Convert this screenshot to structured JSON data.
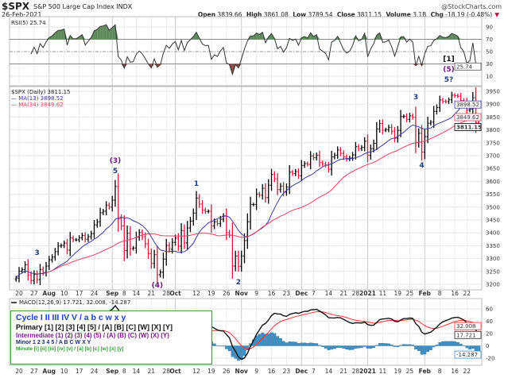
{
  "header": {
    "symbol": "$SPX",
    "name": "S&P 500 Large Cap Index",
    "exchange": "INDX",
    "date": "26-Feb-2021",
    "brand": "@StockCharts.com",
    "open_label": "Open",
    "open": "3839.66",
    "high_label": "High",
    "high": "3861.08",
    "low_label": "Low",
    "low": "3789.54",
    "close_label": "Close",
    "close": "3811.15",
    "volume_label": "Volume",
    "volume": "3.1B",
    "chg_label": "Chg",
    "chg": "-18.19 (-0.48%)",
    "chg_icon": "down-triangle-icon"
  },
  "colors": {
    "up": "#000000",
    "down": "#e0103a",
    "ma13": "#3a3aa0",
    "ma34": "#e84060",
    "rsi_fill_high": "#5e8a5e",
    "rsi_fill_low": "#8a4a4a",
    "macd": "#111111",
    "signal": "#ff3030",
    "hist": "#3e8fc2",
    "legend_border": "#3a9a3a"
  },
  "chart_data": [
    {
      "type": "line",
      "panel": "rsi",
      "title": "RSI(5) 25.74",
      "indicator": "RSI(5)",
      "value": "25.74",
      "ylim": [
        0,
        100
      ],
      "yticks": [
        "90",
        "70",
        "50",
        "30",
        "10"
      ],
      "bands": [
        70,
        50,
        30
      ],
      "grid": true
    },
    {
      "type": "ohlc",
      "panel": "price",
      "title": "$SPX (Daily) 3811.15",
      "series_label": "$SPX (Daily)",
      "last": "3811.15",
      "ylim": [
        3180,
        3975
      ],
      "grid": true,
      "yticks": [
        "3950",
        "3900",
        "3850",
        "3800",
        "3750",
        "3700",
        "3650",
        "3600",
        "3550",
        "3500",
        "3450",
        "3400",
        "3350",
        "3300",
        "3250",
        "3200"
      ],
      "overlays": [
        {
          "name": "MA(13)",
          "value": "3898.52"
        },
        {
          "name": "MA(34)",
          "value": "3849.62"
        }
      ],
      "first_date": "2020-07-17",
      "last_date": "2021-02-26",
      "close": [
        3224,
        3251,
        3257,
        3276,
        3236,
        3215,
        3239,
        3218,
        3258,
        3246,
        3271,
        3295,
        3306,
        3327,
        3349,
        3351,
        3360,
        3333,
        3380,
        3373,
        3373,
        3381,
        3390,
        3375,
        3385,
        3397,
        3431,
        3443,
        3478,
        3484,
        3508,
        3500,
        3527,
        3580,
        3455,
        3427,
        3331,
        3398,
        3339,
        3341,
        3383,
        3401,
        3385,
        3357,
        3319,
        3281,
        3315,
        3237,
        3247,
        3298,
        3351,
        3336,
        3363,
        3380,
        3348,
        3409,
        3361,
        3419,
        3446,
        3477,
        3535,
        3512,
        3489,
        3483,
        3484,
        3427,
        3443,
        3436,
        3453,
        3465,
        3401,
        3391,
        3271,
        3310,
        3270,
        3310,
        3370,
        3443,
        3510,
        3510,
        3551,
        3546,
        3573,
        3537,
        3585,
        3627,
        3610,
        3568,
        3582,
        3558,
        3578,
        3636,
        3630,
        3638,
        3622,
        3662,
        3669,
        3666,
        3699,
        3692,
        3702,
        3673,
        3668,
        3663,
        3647,
        3695,
        3702,
        3722,
        3709,
        3695,
        3687,
        3691,
        3703,
        3735,
        3727,
        3732,
        3756,
        3701,
        3727,
        3748,
        3804,
        3825,
        3799,
        3801,
        3810,
        3795,
        3768,
        3798,
        3852,
        3853,
        3841,
        3855,
        3849,
        3751,
        3787,
        3714,
        3774,
        3826,
        3830,
        3872,
        3887,
        3916,
        3911,
        3910,
        3917,
        3935,
        3933,
        3931,
        3914,
        3907,
        3877,
        3881,
        3925,
        3829,
        3811.15
      ],
      "xticks": [
        {
          "label": "20",
          "i": 1
        },
        {
          "label": "27",
          "i": 6
        },
        {
          "label": "Aug",
          "i": 11,
          "major": true
        },
        {
          "label": "10",
          "i": 16
        },
        {
          "label": "17",
          "i": 21
        },
        {
          "label": "24",
          "i": 26
        },
        {
          "label": "Sep",
          "i": 32,
          "major": true
        },
        {
          "label": "8",
          "i": 36
        },
        {
          "label": "14",
          "i": 40
        },
        {
          "label": "21",
          "i": 45
        },
        {
          "label": "28",
          "i": 50
        },
        {
          "label": "Oct",
          "i": 53,
          "major": true
        },
        {
          "label": "12",
          "i": 60
        },
        {
          "label": "19",
          "i": 65
        },
        {
          "label": "26",
          "i": 70
        },
        {
          "label": "Nov",
          "i": 75,
          "major": true
        },
        {
          "label": "9",
          "i": 80
        },
        {
          "label": "16",
          "i": 85
        },
        {
          "label": "23",
          "i": 90
        },
        {
          "label": "Dec",
          "i": 95,
          "major": true
        },
        {
          "label": "7",
          "i": 99
        },
        {
          "label": "14",
          "i": 104
        },
        {
          "label": "21",
          "i": 109
        },
        {
          "label": "28",
          "i": 113
        },
        {
          "label": "2021",
          "i": 117,
          "major": true
        },
        {
          "label": "11",
          "i": 122
        },
        {
          "label": "19",
          "i": 127
        },
        {
          "label": "25",
          "i": 131
        },
        {
          "label": "Feb",
          "i": 136,
          "major": true
        },
        {
          "label": "8",
          "i": 141
        },
        {
          "label": "16",
          "i": 146
        },
        {
          "label": "22",
          "i": 150
        }
      ],
      "annotations": [
        "3",
        "(3)",
        "5",
        "(4)",
        "1",
        "2",
        "3",
        "4",
        "[1]",
        "(5)",
        "5?"
      ]
    },
    {
      "type": "line+bar",
      "panel": "macd",
      "title": "MACD(12,26,9) 17.721, 32.008, -14.287",
      "indicator": "MACD(12,26,9)",
      "macd": "17.721",
      "signal": "32.008",
      "histogram": "-14.287",
      "ylim": [
        -30,
        75
      ],
      "yticks": [
        "60",
        "40",
        "20",
        "0",
        "-20"
      ],
      "grid": true
    }
  ],
  "legend": {
    "cycle": "Cycle I II III IV V / a b c w x y",
    "primary": "Primary [1] [2] [3] [4] [5] / [A] [B] [C] [W] [X] [Y]",
    "intermediate": "Intermediate (1) (2) (3) (4) (5) / (A) (B) (C) (W) (X) (Y)",
    "minor": "Minor 1 2 3 4 5 / A B C W X Y",
    "minute": "Minute [i] [ii] [iii] [iv] [v] / [a] [b] [c] [w] [x] [y]"
  }
}
